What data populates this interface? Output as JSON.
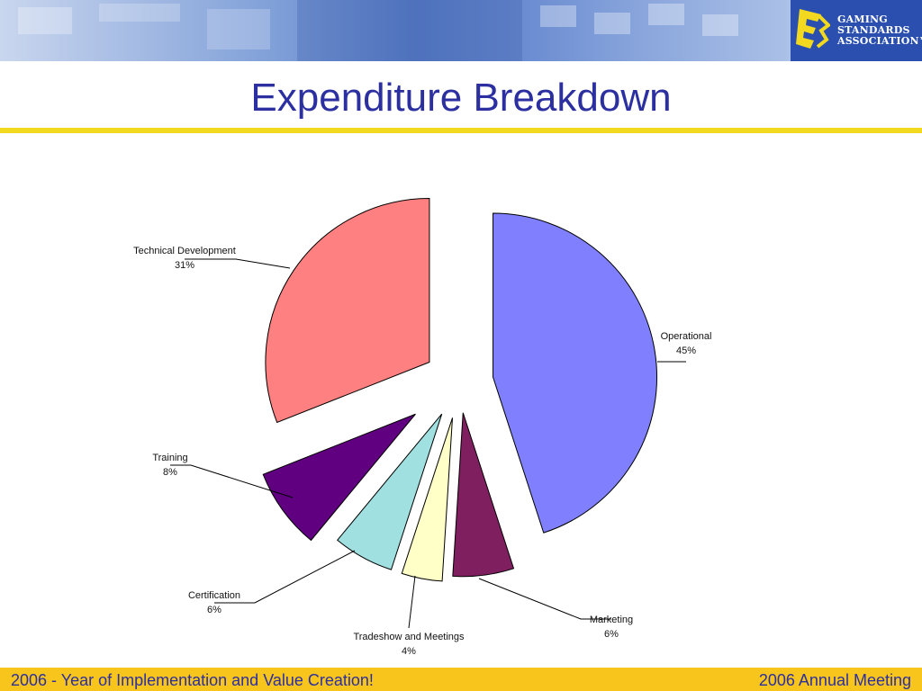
{
  "slide": {
    "title": "Expenditure Breakdown",
    "footer_left": "2006 - Year of Implementation and Value Creation!",
    "footer_right": "2006 Annual Meeting"
  },
  "logo": {
    "icon": "e3-logo-icon",
    "lines": [
      "GAMING",
      "STANDARDS",
      "ASSOCIATION™"
    ]
  },
  "chart_data": {
    "type": "pie",
    "title": "",
    "slices": [
      {
        "label": "Operational",
        "value": 45,
        "display": "45%",
        "color": "#8080ff"
      },
      {
        "label": "Marketing",
        "value": 6,
        "display": "6%",
        "color": "#7f1f5f"
      },
      {
        "label": "Tradeshow and Meetings",
        "value": 4,
        "display": "4%",
        "color": "#ffffc8"
      },
      {
        "label": "Certification",
        "value": 6,
        "display": "6%",
        "color": "#a0e0e0"
      },
      {
        "label": "Training",
        "value": 8,
        "display": "8%",
        "color": "#600080"
      },
      {
        "label": "Technical Development",
        "value": 31,
        "display": "31%",
        "color": "#ff8080"
      }
    ],
    "exploded": true
  }
}
